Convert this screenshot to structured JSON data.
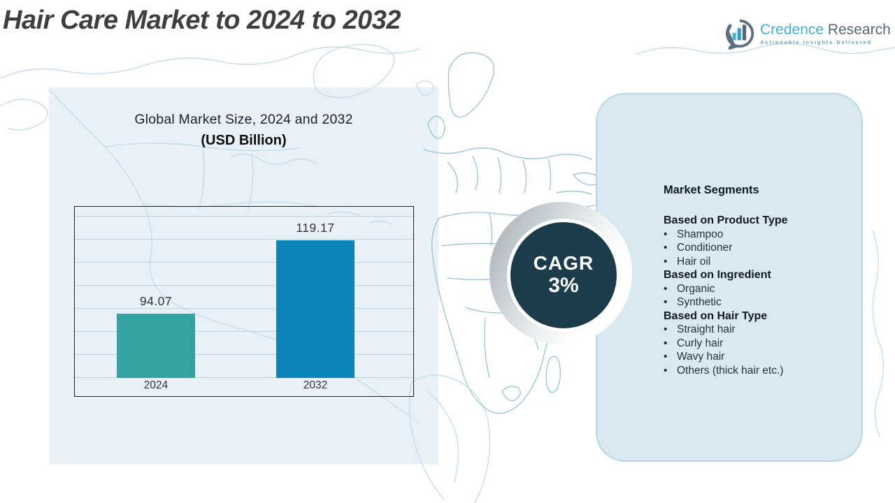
{
  "header": {
    "title": "Hair Care Market to 2024 to 2032",
    "logo": {
      "brand_primary": "Credence",
      "brand_secondary": " Research",
      "tagline": "Actionable Insights Delivered"
    }
  },
  "chart_data": {
    "type": "bar",
    "title": "Global Market Size, 2024 and 2032",
    "subtitle": "(USD Billion)",
    "unit": "USD Billion",
    "categories": [
      "2024",
      "2032"
    ],
    "values": [
      94.07,
      119.17
    ],
    "value_labels": [
      "94.07",
      "119.17"
    ],
    "bar_colors": [
      "#35a2a2",
      "#0e83b8"
    ],
    "grid": true,
    "axis_labels_visible": false,
    "ylim": [
      72,
      125
    ],
    "legend": "none"
  },
  "cagr": {
    "label": "CAGR",
    "value": "3%"
  },
  "segments": {
    "heading": "Market Segments",
    "groups": [
      {
        "title": "Based on Product Type",
        "items": [
          "Shampoo",
          "Conditioner",
          "Hair oil"
        ]
      },
      {
        "title": "Based on Ingredient",
        "items": [
          "Organic",
          "Synthetic"
        ]
      },
      {
        "title": "Based on Hair Type",
        "items": [
          "Straight hair",
          "Curly hair",
          "Wavy hair",
          "Others (thick hair etc.)"
        ]
      }
    ]
  },
  "colors": {
    "bar_2024": "#35a2a2",
    "bar_2032": "#0e83b8",
    "cagr_circle": "#1c3b4b",
    "left_panel": "#e9f1f8",
    "right_panel": "#d9e9f2",
    "right_panel_border": "#b9d6e2",
    "map_line_light": "#c3dbe7",
    "map_line_dark": "#93c4d5",
    "title_text": "#3e3e3e",
    "logo_teal": "#3cb4d2",
    "logo_slate": "#546878"
  }
}
